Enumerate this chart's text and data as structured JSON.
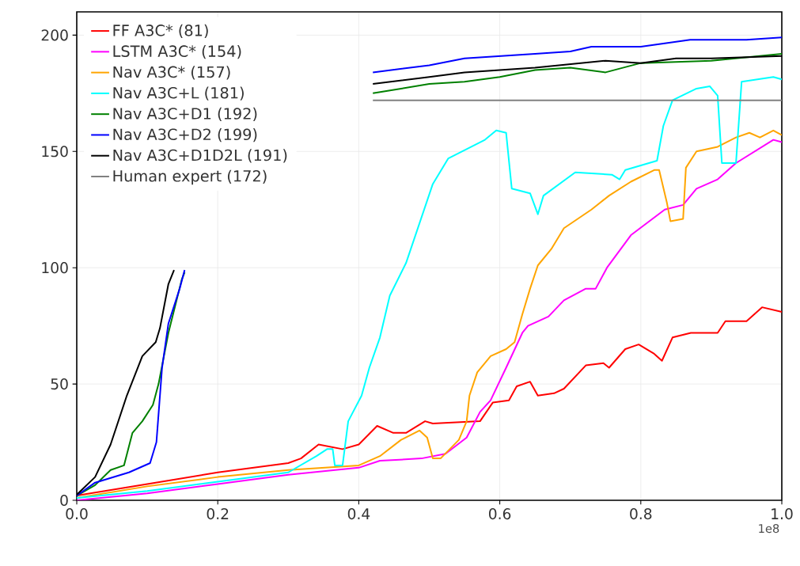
{
  "chart_data": {
    "type": "line",
    "xlim": [
      0,
      1.0
    ],
    "ylim": [
      0,
      210
    ],
    "xticks": [
      {
        "value": 0,
        "label": "0.0"
      },
      {
        "value": 0.2,
        "label": "0.2"
      },
      {
        "value": 0.4,
        "label": "0.4"
      },
      {
        "value": 0.6,
        "label": "0.6"
      },
      {
        "value": 0.8,
        "label": "0.8"
      },
      {
        "value": 1.0,
        "label": "1.0"
      }
    ],
    "yticks": [
      0,
      50,
      100,
      150,
      200
    ],
    "grid": true,
    "legend": "top left",
    "marker": "none",
    "line_style": "solid",
    "annotations": [
      {
        "text": "1e8"
      }
    ],
    "series": [
      {
        "name": "FF A3C* (81)",
        "color": "#ff0000",
        "x": [
          0,
          0.1,
          0.2,
          0.3,
          0.318,
          0.343,
          0.377,
          0.4,
          0.426,
          0.449,
          0.467,
          0.494,
          0.505,
          0.572,
          0.59,
          0.613,
          0.624,
          0.643,
          0.654,
          0.677,
          0.691,
          0.722,
          0.747,
          0.755,
          0.778,
          0.797,
          0.819,
          0.83,
          0.845,
          0.871,
          0.909,
          0.92,
          0.95,
          0.972,
          1.0
        ],
        "values": [
          2,
          7,
          12,
          16,
          18,
          24,
          22,
          24,
          32,
          29,
          29,
          34,
          33,
          34,
          42,
          43,
          49,
          51,
          45,
          46,
          48,
          58,
          59,
          57,
          65,
          67,
          63,
          60,
          70,
          72,
          72,
          77,
          77,
          83,
          81
        ]
      },
      {
        "name": "LSTM A3C* (154)",
        "color": "#ff00ff",
        "x": [
          0,
          0.1,
          0.2,
          0.3,
          0.4,
          0.43,
          0.489,
          0.523,
          0.553,
          0.572,
          0.587,
          0.609,
          0.632,
          0.64,
          0.669,
          0.691,
          0.722,
          0.736,
          0.752,
          0.786,
          0.834,
          0.86,
          0.879,
          0.909,
          0.935,
          0.988,
          1.0
        ],
        "values": [
          0,
          3,
          7,
          11,
          14,
          17,
          18,
          20,
          27,
          38,
          43,
          57,
          72,
          75,
          79,
          86,
          91,
          91,
          100,
          114,
          125,
          127,
          134,
          138,
          145,
          155,
          154
        ]
      },
      {
        "name": "Nav A3C* (157)",
        "color": "#ffa500",
        "x": [
          0,
          0.1,
          0.2,
          0.3,
          0.4,
          0.43,
          0.46,
          0.486,
          0.497,
          0.505,
          0.516,
          0.542,
          0.553,
          0.557,
          0.568,
          0.587,
          0.609,
          0.621,
          0.632,
          0.643,
          0.654,
          0.673,
          0.691,
          0.73,
          0.755,
          0.786,
          0.819,
          0.826,
          0.837,
          0.842,
          0.86,
          0.864,
          0.879,
          0.909,
          0.935,
          0.954,
          0.969,
          0.988,
          1.0
        ],
        "values": [
          1,
          6,
          10,
          13,
          15,
          19,
          26,
          30,
          27,
          18,
          18,
          26,
          34,
          45,
          55,
          62,
          65,
          68,
          80,
          91,
          101,
          108,
          117,
          125,
          131,
          137,
          142,
          142,
          128,
          120,
          121,
          143,
          150,
          152,
          156,
          158,
          156,
          159,
          157
        ]
      },
      {
        "name": "Nav A3C+L (181)",
        "color": "#00ffff",
        "x": [
          0,
          0.1,
          0.2,
          0.3,
          0.34,
          0.355,
          0.363,
          0.366,
          0.377,
          0.385,
          0.404,
          0.415,
          0.43,
          0.444,
          0.467,
          0.505,
          0.527,
          0.553,
          0.579,
          0.595,
          0.609,
          0.617,
          0.643,
          0.654,
          0.662,
          0.707,
          0.759,
          0.77,
          0.778,
          0.823,
          0.832,
          0.845,
          0.879,
          0.898,
          0.909,
          0.915,
          0.935,
          0.943,
          0.988,
          1.0
        ],
        "values": [
          1,
          4,
          8,
          12,
          19,
          22,
          22,
          15,
          15,
          34,
          45,
          57,
          70,
          88,
          102,
          136,
          147,
          151,
          155,
          159,
          158,
          134,
          132,
          123,
          131,
          141,
          140,
          138,
          142,
          146,
          161,
          172,
          177,
          178,
          174,
          145,
          145,
          180,
          182,
          181
        ]
      },
      {
        "name": "Nav A3C+D1 (192)",
        "color": "#008000",
        "x": [
          0,
          0.026,
          0.048,
          0.067,
          0.079,
          0.093,
          0.108,
          0.116,
          0.13,
          0.149,
          0.153,
          0.3,
          0.42,
          0.46,
          0.5,
          0.55,
          0.6,
          0.65,
          0.7,
          0.75,
          0.8,
          0.9,
          1.0
        ],
        "values": [
          2,
          6.5,
          13,
          15,
          29,
          34,
          41,
          50,
          72,
          95,
          98,
          null,
          175,
          177,
          179,
          180,
          182,
          185,
          186,
          184,
          188,
          189,
          192
        ]
      },
      {
        "name": "Nav A3C+D2 (199)",
        "color": "#0000ff",
        "x": [
          0,
          0.026,
          0.074,
          0.104,
          0.113,
          0.121,
          0.13,
          0.146,
          0.153,
          0.3,
          0.42,
          0.5,
          0.55,
          0.65,
          0.7,
          0.73,
          0.8,
          0.87,
          0.95,
          1.0
        ],
        "values": [
          2,
          7.6,
          12,
          16,
          25,
          57,
          76,
          91,
          99,
          null,
          184,
          187,
          190,
          192,
          193,
          195,
          195,
          198,
          198,
          199
        ]
      },
      {
        "name": "Nav A3C+D1D2L (191)",
        "color": "#000000",
        "x": [
          0,
          0.026,
          0.048,
          0.071,
          0.093,
          0.112,
          0.118,
          0.13,
          0.138,
          0.3,
          0.42,
          0.5,
          0.55,
          0.65,
          0.75,
          0.8,
          0.85,
          0.9,
          1.0
        ],
        "values": [
          2.4,
          10,
          24,
          45,
          62,
          68,
          74,
          93,
          99,
          null,
          179,
          182,
          184,
          186,
          189,
          188,
          190,
          190,
          191
        ]
      },
      {
        "name": "Human expert (172)",
        "color": "#808080",
        "x": [
          0.42,
          1.0
        ],
        "values": [
          172,
          172
        ]
      }
    ]
  }
}
